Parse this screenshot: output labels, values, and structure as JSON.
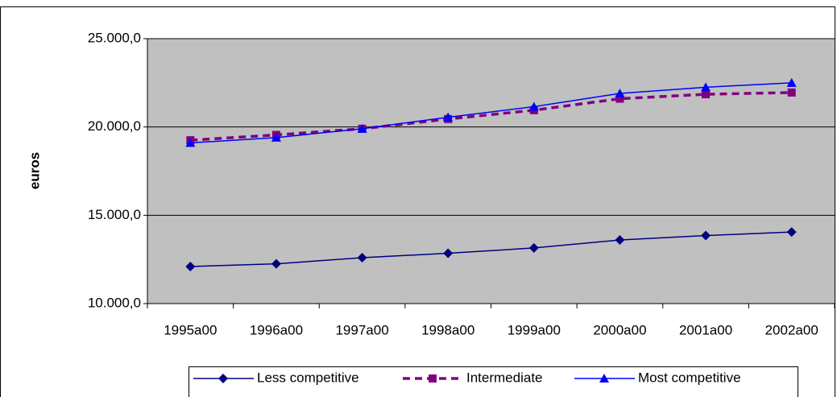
{
  "chart_data": {
    "type": "line",
    "y_label": "euros",
    "categories": [
      "1995a00",
      "1996a00",
      "1997a00",
      "1998a00",
      "1999a00",
      "2000a00",
      "2001a00",
      "2002a00"
    ],
    "series": [
      {
        "name": "Less competitive",
        "color": "#000080",
        "marker": "diamond",
        "line_style": "solid",
        "values": [
          12100,
          12250,
          12600,
          12850,
          13150,
          13600,
          13850,
          14050
        ]
      },
      {
        "name": "Intermediate",
        "color": "#800080",
        "marker": "square",
        "line_style": "dashed",
        "values": [
          19250,
          19550,
          19900,
          20450,
          20950,
          21600,
          21850,
          21950
        ]
      },
      {
        "name": "Most competitive",
        "color": "#0000ff",
        "marker": "triangle",
        "line_style": "solid",
        "values": [
          19100,
          19400,
          19900,
          20550,
          21150,
          21900,
          22250,
          22500
        ]
      }
    ],
    "ylim": [
      10000,
      25000
    ],
    "yticks": [
      {
        "value": 10000,
        "label": "10.000,0"
      },
      {
        "value": 15000,
        "label": "15.000,0"
      },
      {
        "value": 20000,
        "label": "20.000,0"
      },
      {
        "value": 25000,
        "label": "25.000,0"
      }
    ],
    "grid": true,
    "legend": "bottom"
  }
}
